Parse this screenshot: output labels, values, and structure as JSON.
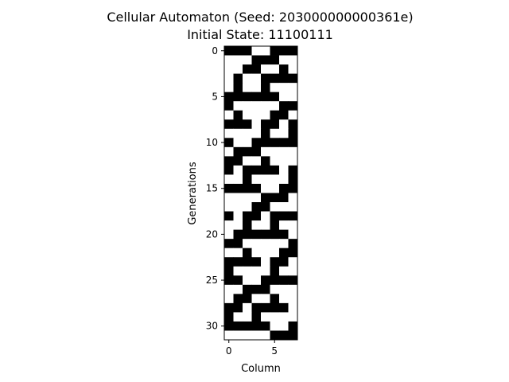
{
  "chart_data": {
    "type": "heatmap",
    "title": "Cellular Automaton (Seed: 203000000000361e)",
    "subtitle": "Initial State: 11100111",
    "xlabel": "Column",
    "ylabel": "Generations",
    "xlim": [
      -0.5,
      7.5
    ],
    "ylim": [
      -0.5,
      31.5
    ],
    "x_ticks": [
      0,
      5
    ],
    "y_ticks": [
      0,
      5,
      10,
      15,
      20,
      25,
      30
    ],
    "grid": false,
    "colors": {
      "on": "#000000",
      "off": "#ffffff"
    },
    "cells": [
      [
        1,
        1,
        1,
        0,
        0,
        1,
        1,
        1
      ],
      [
        0,
        0,
        0,
        1,
        1,
        1,
        0,
        0
      ],
      [
        0,
        0,
        1,
        1,
        0,
        0,
        1,
        0
      ],
      [
        0,
        1,
        0,
        0,
        1,
        1,
        1,
        1
      ],
      [
        0,
        1,
        0,
        0,
        1,
        0,
        0,
        0
      ],
      [
        1,
        1,
        1,
        1,
        1,
        1,
        0,
        0
      ],
      [
        1,
        0,
        0,
        0,
        0,
        0,
        1,
        1
      ],
      [
        0,
        1,
        0,
        0,
        0,
        1,
        1,
        0
      ],
      [
        1,
        1,
        1,
        0,
        1,
        1,
        0,
        1
      ],
      [
        0,
        0,
        0,
        0,
        1,
        0,
        0,
        1
      ],
      [
        1,
        0,
        0,
        1,
        1,
        1,
        1,
        1
      ],
      [
        0,
        1,
        1,
        1,
        0,
        0,
        0,
        0
      ],
      [
        1,
        1,
        0,
        0,
        1,
        0,
        0,
        0
      ],
      [
        1,
        0,
        1,
        1,
        1,
        1,
        0,
        1
      ],
      [
        0,
        0,
        1,
        0,
        0,
        0,
        0,
        1
      ],
      [
        1,
        1,
        1,
        1,
        0,
        0,
        1,
        1
      ],
      [
        0,
        0,
        0,
        0,
        1,
        1,
        1,
        0
      ],
      [
        0,
        0,
        0,
        1,
        1,
        0,
        0,
        0
      ],
      [
        1,
        0,
        1,
        1,
        0,
        1,
        1,
        1
      ],
      [
        0,
        0,
        1,
        0,
        0,
        1,
        0,
        0
      ],
      [
        0,
        1,
        1,
        1,
        1,
        1,
        1,
        0
      ],
      [
        1,
        1,
        0,
        0,
        0,
        0,
        0,
        1
      ],
      [
        0,
        0,
        1,
        0,
        0,
        0,
        1,
        1
      ],
      [
        1,
        1,
        1,
        1,
        0,
        1,
        1,
        0
      ],
      [
        1,
        0,
        0,
        0,
        0,
        1,
        0,
        0
      ],
      [
        1,
        1,
        0,
        0,
        1,
        1,
        1,
        1
      ],
      [
        0,
        0,
        1,
        1,
        1,
        0,
        0,
        0
      ],
      [
        0,
        1,
        1,
        0,
        0,
        1,
        0,
        0
      ],
      [
        1,
        1,
        0,
        1,
        1,
        1,
        1,
        0
      ],
      [
        1,
        0,
        0,
        1,
        0,
        0,
        0,
        0
      ],
      [
        1,
        1,
        1,
        1,
        1,
        0,
        0,
        1
      ],
      [
        0,
        0,
        0,
        0,
        0,
        1,
        1,
        1
      ]
    ]
  }
}
